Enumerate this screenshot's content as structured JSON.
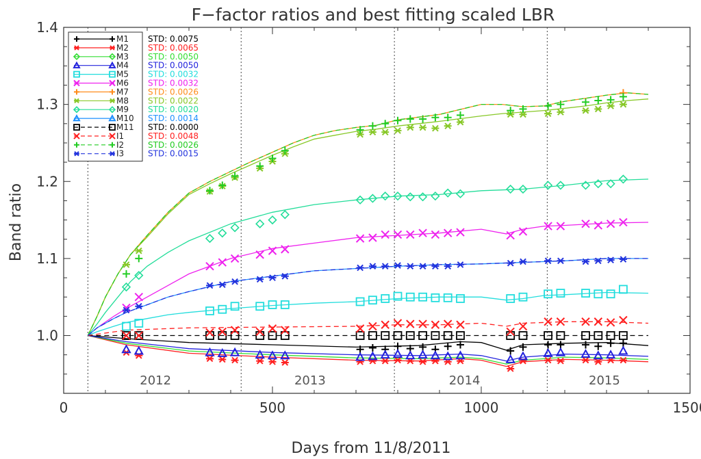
{
  "chart_data": {
    "type": "line",
    "title": "F−factor ratios and best fitting scaled LBR",
    "xlabel": "Days from 11/8/2011",
    "ylabel": "Band ratio",
    "xlim": [
      0,
      1500
    ],
    "ylim": [
      0.925,
      1.4
    ],
    "x_ticks": [
      "0",
      "500",
      "1000",
      "1500"
    ],
    "y_ticks": [
      "1.0",
      "1.1",
      "1.2",
      "1.3",
      "1.4"
    ],
    "x_tick_values": [
      0,
      500,
      1000,
      1500
    ],
    "y_tick_values": [
      1.0,
      1.1,
      1.2,
      1.3,
      1.4
    ],
    "reference_line": 1.0,
    "vertical_markers": [
      58,
      425,
      792,
      1158
    ],
    "year_labels": [
      {
        "text": "2012",
        "x": 220
      },
      {
        "text": "2013",
        "x": 590
      },
      {
        "text": "2014",
        "x": 960
      },
      {
        "text": "2015",
        "x": 1295
      }
    ],
    "legend_position": "top-left",
    "observation_days": [
      150,
      180,
      350,
      380,
      410,
      470,
      500,
      530,
      710,
      740,
      770,
      800,
      830,
      860,
      890,
      920,
      950,
      1070,
      1100,
      1160,
      1190,
      1250,
      1280,
      1310,
      1340
    ],
    "series": [
      {
        "name": "M1",
        "std": "STD: 0.0075",
        "color": "#000000",
        "marker": "plus",
        "dash": false,
        "x": [
          58,
          150,
          300,
          500,
          700,
          850,
          950,
          1000,
          1060,
          1100,
          1200,
          1300,
          1400
        ],
        "y": [
          1.0,
          0.996,
          0.991,
          0.988,
          0.985,
          0.987,
          0.992,
          0.991,
          0.981,
          0.988,
          0.99,
          0.991,
          0.987
        ],
        "obs": [
          null,
          null,
          null,
          null,
          null,
          null,
          null,
          null,
          0.982,
          0.984,
          0.982,
          0.986,
          0.983,
          0.985,
          0.982,
          0.986,
          0.988,
          0.98,
          0.985,
          0.988,
          0.988,
          0.988,
          0.986,
          0.99,
          0.99
        ]
      },
      {
        "name": "M2",
        "std": "STD: 0.0065",
        "color": "#ff2020",
        "marker": "asterisk",
        "dash": false,
        "x": [
          58,
          150,
          300,
          500,
          700,
          850,
          950,
          1000,
          1060,
          1100,
          1200,
          1300,
          1400
        ],
        "y": [
          1.0,
          0.988,
          0.977,
          0.972,
          0.968,
          0.967,
          0.97,
          0.968,
          0.96,
          0.966,
          0.969,
          0.968,
          0.966
        ],
        "obs": [
          0.978,
          0.974,
          0.97,
          0.969,
          0.968,
          0.967,
          0.966,
          0.965,
          0.966,
          0.967,
          0.967,
          0.968,
          0.967,
          0.966,
          0.967,
          0.966,
          0.967,
          0.957,
          0.967,
          0.968,
          0.967,
          0.968,
          0.966,
          0.968,
          0.968
        ]
      },
      {
        "name": "M3",
        "std": "STD: 0.0050",
        "color": "#33dd33",
        "marker": "diamond",
        "dash": false,
        "x": [
          58,
          150,
          300,
          500,
          700,
          850,
          950,
          1000,
          1060,
          1100,
          1200,
          1300,
          1400
        ],
        "y": [
          1.0,
          0.99,
          0.98,
          0.975,
          0.971,
          0.97,
          0.972,
          0.97,
          0.963,
          0.968,
          0.972,
          0.971,
          0.969
        ],
        "obs": [
          null,
          null,
          null,
          null,
          null,
          null,
          null,
          null,
          null,
          null,
          null,
          null,
          null,
          null,
          null,
          null,
          null,
          null,
          null,
          null,
          null,
          null,
          null,
          null,
          null
        ]
      },
      {
        "name": "M4",
        "std": "STD: 0.0050",
        "color": "#2222dd",
        "marker": "triangle",
        "dash": false,
        "x": [
          58,
          150,
          300,
          500,
          700,
          850,
          950,
          1000,
          1060,
          1100,
          1200,
          1300,
          1400
        ],
        "y": [
          1.0,
          0.992,
          0.983,
          0.978,
          0.975,
          0.974,
          0.976,
          0.974,
          0.967,
          0.972,
          0.976,
          0.975,
          0.973
        ],
        "obs": [
          0.982,
          0.98,
          0.978,
          0.977,
          0.978,
          0.975,
          0.974,
          0.974,
          0.972,
          0.973,
          0.975,
          0.976,
          0.974,
          0.975,
          0.974,
          0.973,
          0.974,
          0.969,
          0.973,
          0.977,
          0.978,
          0.976,
          0.974,
          0.975,
          0.98
        ]
      },
      {
        "name": "M5",
        "std": "STD: 0.0032",
        "color": "#22dddd",
        "marker": "square",
        "dash": false,
        "x": [
          58,
          80,
          120,
          150,
          200,
          250,
          300,
          400,
          500,
          600,
          700,
          800,
          900,
          1000,
          1060,
          1100,
          1150,
          1200,
          1300,
          1400
        ],
        "y": [
          1.0,
          1.005,
          1.012,
          1.017,
          1.022,
          1.027,
          1.03,
          1.035,
          1.039,
          1.042,
          1.044,
          1.048,
          1.05,
          1.05,
          1.046,
          1.048,
          1.052,
          1.053,
          1.056,
          1.055
        ],
        "obs": [
          1.012,
          1.016,
          1.032,
          1.034,
          1.038,
          1.038,
          1.04,
          1.04,
          1.044,
          1.046,
          1.048,
          1.051,
          1.05,
          1.05,
          1.049,
          1.049,
          1.048,
          1.048,
          1.05,
          1.054,
          1.055,
          1.055,
          1.054,
          1.054,
          1.06
        ]
      },
      {
        "name": "M6",
        "std": "STD: 0.0032",
        "color": "#ee22ee",
        "marker": "x",
        "dash": false,
        "x": [
          58,
          80,
          120,
          150,
          200,
          250,
          300,
          400,
          500,
          600,
          700,
          800,
          900,
          1000,
          1060,
          1100,
          1150,
          1200,
          1300,
          1400
        ],
        "y": [
          1.0,
          1.01,
          1.025,
          1.035,
          1.05,
          1.065,
          1.08,
          1.1,
          1.113,
          1.12,
          1.127,
          1.13,
          1.133,
          1.138,
          1.132,
          1.138,
          1.142,
          1.143,
          1.146,
          1.147
        ],
        "obs": [
          1.036,
          1.05,
          1.09,
          1.095,
          1.1,
          1.105,
          1.11,
          1.112,
          1.126,
          1.127,
          1.131,
          1.131,
          1.131,
          1.133,
          1.131,
          1.133,
          1.134,
          1.13,
          1.135,
          1.142,
          1.142,
          1.145,
          1.143,
          1.145,
          1.147
        ]
      },
      {
        "name": "M7",
        "std": "STD: 0.0026",
        "color": "#ff8c1a",
        "marker": "plus",
        "dash": false,
        "x": [
          58,
          80,
          100,
          130,
          160,
          200,
          250,
          300,
          350,
          400,
          450,
          500,
          550,
          600,
          650,
          700,
          750,
          800,
          900,
          1000,
          1050,
          1100,
          1150,
          1200,
          1250,
          1300,
          1350,
          1400
        ],
        "y": [
          1.0,
          1.025,
          1.05,
          1.08,
          1.105,
          1.13,
          1.16,
          1.185,
          1.2,
          1.213,
          1.226,
          1.238,
          1.25,
          1.26,
          1.266,
          1.27,
          1.273,
          1.28,
          1.287,
          1.3,
          1.3,
          1.297,
          1.298,
          1.304,
          1.308,
          1.312,
          1.315,
          1.313
        ],
        "obs": [
          null,
          null,
          null,
          null,
          null,
          null,
          null,
          null,
          null,
          null,
          null,
          null,
          null,
          null,
          null,
          null,
          null,
          null,
          null,
          null,
          null,
          null,
          null,
          null,
          1.315
        ]
      },
      {
        "name": "M8",
        "std": "STD: 0.0022",
        "color": "#88c828",
        "marker": "asterisk",
        "dash": false,
        "x": [
          58,
          80,
          100,
          130,
          160,
          200,
          250,
          300,
          350,
          400,
          450,
          500,
          550,
          600,
          650,
          700,
          750,
          800,
          900,
          1000,
          1050,
          1100,
          1150,
          1200,
          1250,
          1300,
          1350,
          1400
        ],
        "y": [
          1.0,
          1.025,
          1.05,
          1.08,
          1.105,
          1.128,
          1.158,
          1.183,
          1.197,
          1.21,
          1.222,
          1.234,
          1.245,
          1.255,
          1.26,
          1.265,
          1.268,
          1.272,
          1.278,
          1.285,
          1.288,
          1.29,
          1.292,
          1.295,
          1.298,
          1.302,
          1.305,
          1.307
        ],
        "obs": [
          1.092,
          1.11,
          1.187,
          1.194,
          1.205,
          1.217,
          1.226,
          1.236,
          1.261,
          1.264,
          1.264,
          1.266,
          1.27,
          1.27,
          1.269,
          1.272,
          1.277,
          1.287,
          1.287,
          1.288,
          1.29,
          1.292,
          1.294,
          1.298,
          1.3
        ]
      },
      {
        "name": "M9",
        "std": "STD: 0.0020",
        "color": "#22dd99",
        "marker": "diamond",
        "dash": false,
        "x": [
          58,
          80,
          100,
          130,
          160,
          200,
          250,
          300,
          400,
          500,
          600,
          700,
          800,
          900,
          1000,
          1100,
          1200,
          1300,
          1400
        ],
        "y": [
          1.0,
          1.015,
          1.03,
          1.05,
          1.07,
          1.09,
          1.108,
          1.123,
          1.145,
          1.16,
          1.17,
          1.176,
          1.181,
          1.183,
          1.188,
          1.19,
          1.195,
          1.201,
          1.203
        ],
        "obs": [
          1.063,
          1.078,
          1.126,
          1.133,
          1.14,
          1.145,
          1.15,
          1.157,
          1.176,
          1.178,
          1.181,
          1.181,
          1.18,
          1.18,
          1.181,
          1.185,
          1.184,
          1.19,
          1.19,
          1.195,
          1.195,
          1.195,
          1.197,
          1.197,
          1.203
        ]
      },
      {
        "name": "M10",
        "std": "STD: 0.0014",
        "color": "#1e90ff",
        "marker": "triangle",
        "dash": false,
        "x": [
          58,
          80,
          120,
          150,
          200,
          250,
          300,
          400,
          500,
          600,
          700,
          800,
          900,
          1000,
          1100,
          1200,
          1300,
          1400
        ],
        "y": [
          1.0,
          1.01,
          1.022,
          1.03,
          1.04,
          1.05,
          1.057,
          1.07,
          1.077,
          1.084,
          1.087,
          1.09,
          1.092,
          1.093,
          1.095,
          1.097,
          1.1,
          1.1
        ],
        "obs": [
          null,
          null,
          null,
          null,
          null,
          null,
          null,
          null,
          null,
          null,
          null,
          null,
          null,
          null,
          null,
          null,
          null,
          null,
          null,
          null,
          null,
          null,
          null,
          null,
          null
        ]
      },
      {
        "name": "M11",
        "std": "STD: 0.0000",
        "color": "#000000",
        "marker": "square",
        "dash": true,
        "x": [
          58,
          1400
        ],
        "y": [
          1.0,
          1.0
        ],
        "obs": [
          1.0,
          1.0,
          1.0,
          1.0,
          1.0,
          1.0,
          1.0,
          1.0,
          1.0,
          1.0,
          1.0,
          1.0,
          1.0,
          1.0,
          1.0,
          1.0,
          1.0,
          1.0,
          1.0,
          1.0,
          1.0,
          1.0,
          1.0,
          1.0,
          1.0
        ]
      },
      {
        "name": "I1",
        "std": "STD: 0.0048",
        "color": "#ff2020",
        "marker": "x",
        "dash": true,
        "x": [
          58,
          150,
          300,
          500,
          700,
          800,
          900,
          1000,
          1060,
          1100,
          1200,
          1300,
          1400
        ],
        "y": [
          1.0,
          1.007,
          1.01,
          1.011,
          1.012,
          1.014,
          1.014,
          1.016,
          1.012,
          1.016,
          1.018,
          1.018,
          1.016
        ],
        "obs": [
          1.0,
          1.0,
          1.004,
          1.005,
          1.007,
          1.005,
          1.009,
          1.007,
          1.009,
          1.012,
          1.014,
          1.016,
          1.015,
          1.015,
          1.014,
          1.015,
          1.014,
          1.005,
          1.012,
          1.018,
          1.018,
          1.018,
          1.018,
          1.017,
          1.02
        ]
      },
      {
        "name": "I2",
        "std": "STD: 0.0026",
        "color": "#22cc22",
        "marker": "plus",
        "dash": true,
        "x": [
          58,
          80,
          100,
          130,
          160,
          200,
          250,
          300,
          350,
          400,
          450,
          500,
          550,
          600,
          650,
          700,
          750,
          800,
          900,
          1000,
          1050,
          1100,
          1150,
          1200,
          1250,
          1300,
          1350,
          1400
        ],
        "y": [
          1.0,
          1.025,
          1.05,
          1.08,
          1.105,
          1.13,
          1.16,
          1.185,
          1.2,
          1.213,
          1.226,
          1.238,
          1.25,
          1.26,
          1.266,
          1.27,
          1.273,
          1.28,
          1.287,
          1.3,
          1.3,
          1.297,
          1.298,
          1.304,
          1.308,
          1.312,
          1.315,
          1.313
        ],
        "obs": [
          1.08,
          1.1,
          1.188,
          1.195,
          1.207,
          1.22,
          1.23,
          1.24,
          1.267,
          1.272,
          1.275,
          1.279,
          1.281,
          1.281,
          1.283,
          1.283,
          1.286,
          1.292,
          1.294,
          1.298,
          1.3,
          1.303,
          1.305,
          1.306,
          1.31
        ]
      },
      {
        "name": "I3",
        "std": "STD: 0.0015",
        "color": "#2233dd",
        "marker": "asterisk",
        "dash": true,
        "x": [
          58,
          80,
          120,
          150,
          200,
          250,
          300,
          400,
          500,
          600,
          700,
          800,
          900,
          1000,
          1100,
          1200,
          1300,
          1400
        ],
        "y": [
          1.0,
          1.01,
          1.022,
          1.03,
          1.04,
          1.05,
          1.057,
          1.07,
          1.077,
          1.084,
          1.087,
          1.09,
          1.092,
          1.093,
          1.095,
          1.097,
          1.1,
          1.1
        ],
        "obs": [
          1.033,
          1.038,
          1.065,
          1.066,
          1.07,
          1.073,
          1.075,
          1.077,
          1.088,
          1.09,
          1.09,
          1.091,
          1.09,
          1.09,
          1.09,
          1.09,
          1.092,
          1.094,
          1.096,
          1.097,
          1.097,
          1.096,
          1.097,
          1.098,
          1.099
        ]
      }
    ]
  }
}
